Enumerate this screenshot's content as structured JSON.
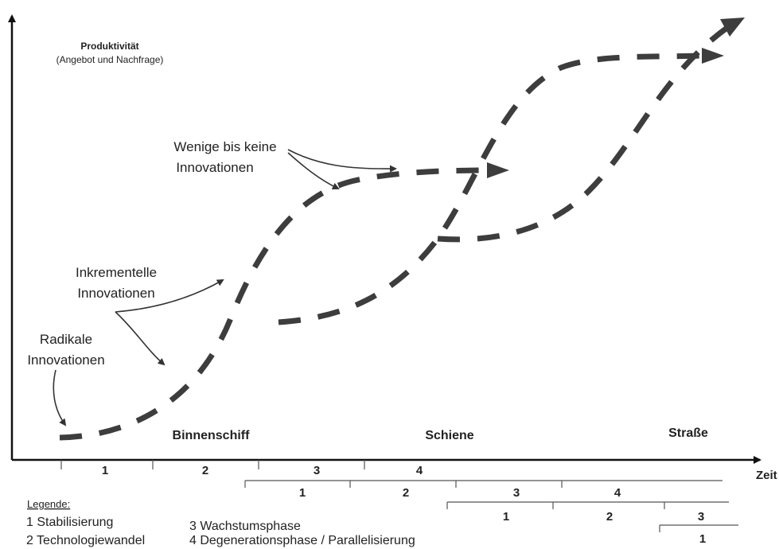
{
  "y_axis": {
    "title": "Produktivität",
    "subtitle": "(Angebot und Nachfrage)"
  },
  "x_axis": {
    "label": "Zeit"
  },
  "annotations": {
    "few": [
      "Wenige bis keine",
      "Innovationen"
    ],
    "incremental": [
      "Inkrementelle",
      "Innovationen"
    ],
    "radical": [
      "Radikale",
      "Innovationen"
    ]
  },
  "modes": [
    {
      "name": "Binnenschiff",
      "phases": [
        "1",
        "2",
        "3",
        "4"
      ]
    },
    {
      "name": "Schiene",
      "phases": [
        "1",
        "2",
        "3",
        "4"
      ]
    },
    {
      "name": "Straße",
      "phases": [
        "1",
        "2",
        "3",
        "1"
      ]
    }
  ],
  "legend": {
    "title": "Legende:",
    "items": [
      "1 Stabilisierung",
      "2 Technologiewandel",
      "3 Wachstumsphase",
      "4 Degenerationsphase / Parallelisierung"
    ]
  },
  "colors": {
    "curve": "#3d3d3d",
    "axis": "#111111"
  }
}
